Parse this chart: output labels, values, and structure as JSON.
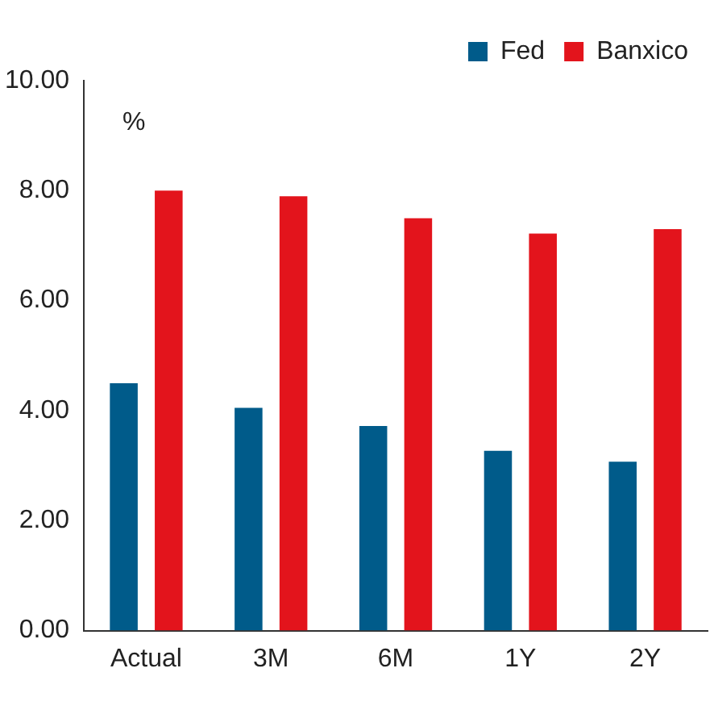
{
  "chart_data": {
    "type": "bar",
    "categories": [
      "Actual",
      "3M",
      "6M",
      "1Y",
      "2Y"
    ],
    "series": [
      {
        "name": "Fed",
        "color": "#005b8a",
        "values": [
          4.5,
          4.05,
          3.72,
          3.27,
          3.07
        ]
      },
      {
        "name": "Banxico",
        "color": "#e3141c",
        "values": [
          8.0,
          7.9,
          7.5,
          7.22,
          7.3
        ]
      }
    ],
    "ylim": [
      0,
      10
    ],
    "yticks": [
      {
        "value": 0,
        "label": "0.00"
      },
      {
        "value": 2,
        "label": "2.00"
      },
      {
        "value": 4,
        "label": "4.00"
      },
      {
        "value": 6,
        "label": "6.00"
      },
      {
        "value": 8,
        "label": "8.00"
      },
      {
        "value": 10,
        "label": "10.00"
      }
    ],
    "annotations": [
      "%"
    ],
    "grid": false,
    "legend": "top right"
  }
}
